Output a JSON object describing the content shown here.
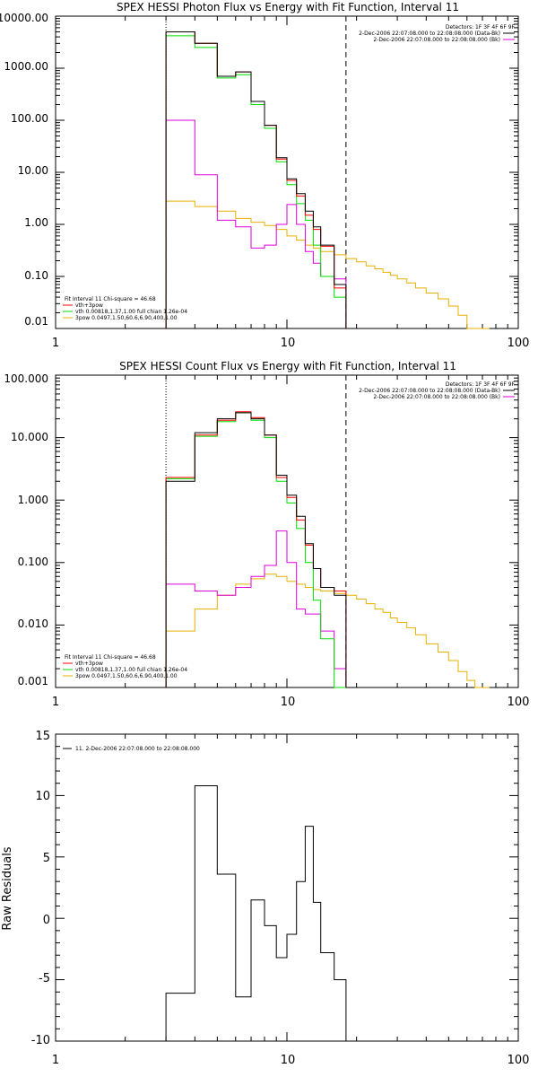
{
  "colors": {
    "data": "#000000",
    "total": "#ff0000",
    "thermal": "#00dd00",
    "nonthermal": "#dd00dd",
    "power": "#e8b000"
  },
  "chart_data": [
    {
      "type": "line",
      "title": "SPEX HESSI Photon Flux vs Energy with Fit Function, Interval 11",
      "xscale": "log",
      "yscale": "log",
      "xlim": [
        1,
        100
      ],
      "ylim": [
        0.01,
        10000
      ],
      "xticks": [
        "1",
        "10",
        "100"
      ],
      "yticks": [
        "0.01",
        "0.10",
        "1.00",
        "10.00",
        "100.00",
        "1000.00",
        "10000.00"
      ],
      "xlabel": "",
      "ylabel": "",
      "fit_range": [
        3,
        18
      ],
      "legend_top_right": {
        "detectors": "Detectors: 1F 3F 4F 6F 9F",
        "line1": "2-Dec-2006 22:07:08.000 to 22:08:08.000 (Data-Bk)",
        "line2": "2-Dec-2006 22:07:08.000 to 22:08:08.000 (Bk)"
      },
      "legend_bottom_left": {
        "header": "Fit Interval 11    Chi-square = 46.68",
        "items": [
          "vth+3pow",
          "vth 0.00818,1.37,1.00  full chian 1.26e-04",
          "3pow 0.0497,1.50,60.6,6.90,400,1.00"
        ]
      },
      "x_edges": [
        3.0,
        4.0,
        5.0,
        6.0,
        7.0,
        8.0,
        9.0,
        10.0,
        11.0,
        12.0,
        13.0,
        14.0,
        16.0,
        18.0
      ],
      "series": [
        {
          "name": "Data-Bk",
          "values": [
            5000,
            3000,
            700,
            850,
            230,
            80,
            19,
            7.5,
            3.9,
            1.8,
            0.9,
            0.4,
            0.07
          ]
        },
        {
          "name": "vth+3pow",
          "values": [
            5000,
            3000,
            700,
            850,
            230,
            80,
            18,
            7.0,
            3.5,
            1.5,
            0.8,
            0.38,
            0.06
          ]
        },
        {
          "name": "vth",
          "values": [
            4200,
            2500,
            650,
            750,
            200,
            70,
            16,
            5.8,
            2.5,
            1.2,
            0.4,
            0.1,
            0.04
          ]
        },
        {
          "name": "3pow",
          "values_nonthermal": [
            100,
            9,
            1.2,
            0.9,
            0.35,
            0.4,
            1.0,
            2.4,
            1.0,
            0.3,
            0.18,
            0.1,
            0.09
          ]
        }
      ],
      "powerlaw_x_edges": [
        3.0,
        4.0,
        5.0,
        6.0,
        7.0,
        8.0,
        9.0,
        10.0,
        11.0,
        12.0,
        13.0,
        14.0,
        16.0,
        18.0,
        20.0,
        22.0,
        24.0,
        26.0,
        28.0,
        30.0,
        33.0,
        36.0,
        40.0,
        45.0,
        50.0,
        55.0,
        60.0,
        65.0,
        70.0,
        75.0
      ],
      "powerlaw_values": [
        2.8,
        2.2,
        1.8,
        1.3,
        1.1,
        0.95,
        0.8,
        0.6,
        0.5,
        0.4,
        0.35,
        0.3,
        0.26,
        0.22,
        0.19,
        0.16,
        0.14,
        0.12,
        0.105,
        0.09,
        0.075,
        0.06,
        0.048,
        0.037,
        0.027,
        0.018,
        0.01,
        0.006,
        0.004
      ]
    },
    {
      "type": "line",
      "title": "SPEX HESSI Count Flux vs Energy with Fit Function, Interval 11",
      "xscale": "log",
      "yscale": "log",
      "xlim": [
        1,
        100
      ],
      "ylim": [
        0.001,
        100
      ],
      "xticks": [
        "1",
        "10",
        "100"
      ],
      "yticks": [
        "0.001",
        "0.010",
        "0.100",
        "1.000",
        "10.000",
        "100.000"
      ],
      "xlabel": "",
      "ylabel": "",
      "fit_range": [
        3,
        18
      ],
      "legend_top_right": {
        "detectors": "Detectors: 1F 3F 4F 6F 9F",
        "line1": "2-Dec-2006 22:07:08.000 to 22:08:08.000 (Data-Bk)",
        "line2": "2-Dec-2006 22:07:08.000 to 22:08:08.000 (Bk)"
      },
      "legend_bottom_left": {
        "header": "Fit Interval 11    Chi-square = 46.68",
        "items": [
          "vth+3pow",
          "vth 0.00818,1.37,1.00  full chian 1.26e-04",
          "3pow 0.0497,1.50,60.6,6.90,400,1.00"
        ]
      },
      "x_edges": [
        3.0,
        4.0,
        5.0,
        6.0,
        7.0,
        8.0,
        9.0,
        10.0,
        11.0,
        12.0,
        13.0,
        14.0,
        16.0,
        18.0
      ],
      "series": [
        {
          "name": "Data-Bk",
          "values": [
            2.0,
            12,
            20,
            25,
            20,
            11,
            2.5,
            1.2,
            0.55,
            0.2,
            0.08,
            0.04,
            0.03
          ]
        },
        {
          "name": "vth+3pow",
          "values": [
            2.3,
            11,
            19,
            26,
            21,
            11,
            2.3,
            1.1,
            0.48,
            0.19,
            0.08,
            0.04,
            0.035
          ]
        },
        {
          "name": "vth",
          "values": [
            2.2,
            10.5,
            18,
            25,
            19,
            10,
            2.0,
            0.9,
            0.35,
            0.1,
            0.025,
            0.006,
            0.001
          ]
        },
        {
          "name": "3pow",
          "values_nonthermal": [
            0.045,
            0.035,
            0.03,
            0.04,
            0.06,
            0.09,
            0.32,
            0.1,
            0.018,
            0.015,
            0.015,
            0.008,
            0.002
          ]
        }
      ],
      "powerlaw_x_edges": [
        3.0,
        4.0,
        5.0,
        6.0,
        7.0,
        8.0,
        9.0,
        10.0,
        11.0,
        12.0,
        13.0,
        14.0,
        16.0,
        18.0,
        20.0,
        22.0,
        24.0,
        26.0,
        28.0,
        30.0,
        33.0,
        36.0,
        40.0,
        45.0,
        50.0,
        55.0,
        60.0,
        65.0,
        70.0,
        75.0
      ],
      "powerlaw_values": [
        0.008,
        0.018,
        0.03,
        0.045,
        0.055,
        0.065,
        0.06,
        0.05,
        0.045,
        0.04,
        0.037,
        0.035,
        0.032,
        0.03,
        0.026,
        0.022,
        0.018,
        0.016,
        0.013,
        0.011,
        0.009,
        0.007,
        0.005,
        0.0037,
        0.0027,
        0.0018,
        0.0013,
        0.0008,
        0.0005
      ]
    },
    {
      "type": "line",
      "title": "",
      "xscale": "log",
      "yscale": "linear",
      "xlim": [
        1,
        100
      ],
      "ylim": [
        -10,
        15
      ],
      "xticks": [
        "1",
        "10",
        "100"
      ],
      "yticks": [
        "-10",
        "-5",
        "0",
        "5",
        "10",
        "15"
      ],
      "xlabel": "",
      "ylabel": "Raw Residuals",
      "legend": "11.  2-Dec-2006 22:07:08.000 to 22:08:08.000",
      "x_edges": [
        3.0,
        4.0,
        5.0,
        6.0,
        7.0,
        8.0,
        9.0,
        10.0,
        11.0,
        12.0,
        13.0,
        14.0,
        16.0,
        18.0
      ],
      "series": [
        {
          "name": "",
          "values": [
            -6.1,
            10.8,
            3.6,
            -6.4,
            1.5,
            -0.6,
            -3.2,
            -1.3,
            3.0,
            7.5,
            1.3,
            -2.8,
            -5.0
          ]
        }
      ]
    }
  ]
}
